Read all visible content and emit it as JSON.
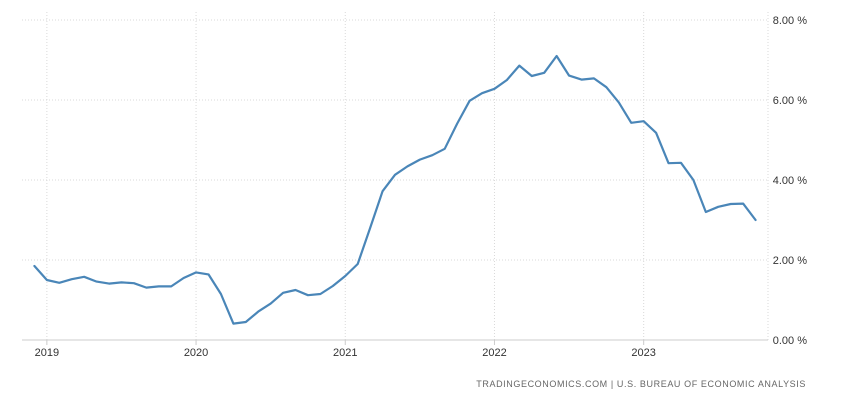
{
  "chart_data": {
    "type": "line",
    "title": "",
    "xlabel": "",
    "ylabel": "",
    "x_ticks": [
      "2019",
      "2020",
      "2021",
      "2022",
      "2023"
    ],
    "y_ticks": [
      "0.00 %",
      "2.00 %",
      "4.00 %",
      "6.00 %",
      "8.00 %"
    ],
    "ylim": [
      0,
      8
    ],
    "xlim": [
      "2018-11",
      "2023-11"
    ],
    "grid": true,
    "legend": "none",
    "source_text": "TRADINGECONOMICS.COM | U.S. BUREAU OF ECONOMIC ANALYSIS",
    "series": [
      {
        "color": "#4a86b8",
        "x": [
          "2018-12",
          "2019-01",
          "2019-02",
          "2019-03",
          "2019-04",
          "2019-05",
          "2019-06",
          "2019-07",
          "2019-08",
          "2019-09",
          "2019-10",
          "2019-11",
          "2019-12",
          "2020-01",
          "2020-02",
          "2020-03",
          "2020-04",
          "2020-05",
          "2020-06",
          "2020-07",
          "2020-08",
          "2020-09",
          "2020-10",
          "2020-11",
          "2020-12",
          "2021-01",
          "2021-02",
          "2021-03",
          "2021-04",
          "2021-05",
          "2021-06",
          "2021-07",
          "2021-08",
          "2021-09",
          "2021-10",
          "2021-11",
          "2021-12",
          "2022-01",
          "2022-02",
          "2022-03",
          "2022-04",
          "2022-05",
          "2022-06",
          "2022-07",
          "2022-08",
          "2022-09",
          "2022-10",
          "2022-11",
          "2022-12",
          "2023-01",
          "2023-02",
          "2023-03",
          "2023-04",
          "2023-05",
          "2023-06",
          "2023-07",
          "2023-08",
          "2023-09",
          "2023-10"
        ],
        "values": [
          1.85,
          1.5,
          1.43,
          1.52,
          1.58,
          1.46,
          1.41,
          1.44,
          1.42,
          1.31,
          1.34,
          1.34,
          1.55,
          1.69,
          1.64,
          1.15,
          0.41,
          0.45,
          0.71,
          0.91,
          1.18,
          1.25,
          1.12,
          1.15,
          1.35,
          1.6,
          1.9,
          2.8,
          3.72,
          4.13,
          4.34,
          4.51,
          4.62,
          4.78,
          5.41,
          5.98,
          6.17,
          6.28,
          6.5,
          6.86,
          6.6,
          6.68,
          7.1,
          6.61,
          6.51,
          6.54,
          6.32,
          5.94,
          5.43,
          5.47,
          5.18,
          4.42,
          4.43,
          4.0,
          3.2,
          3.33,
          3.4,
          3.41,
          3.0
        ]
      }
    ]
  }
}
